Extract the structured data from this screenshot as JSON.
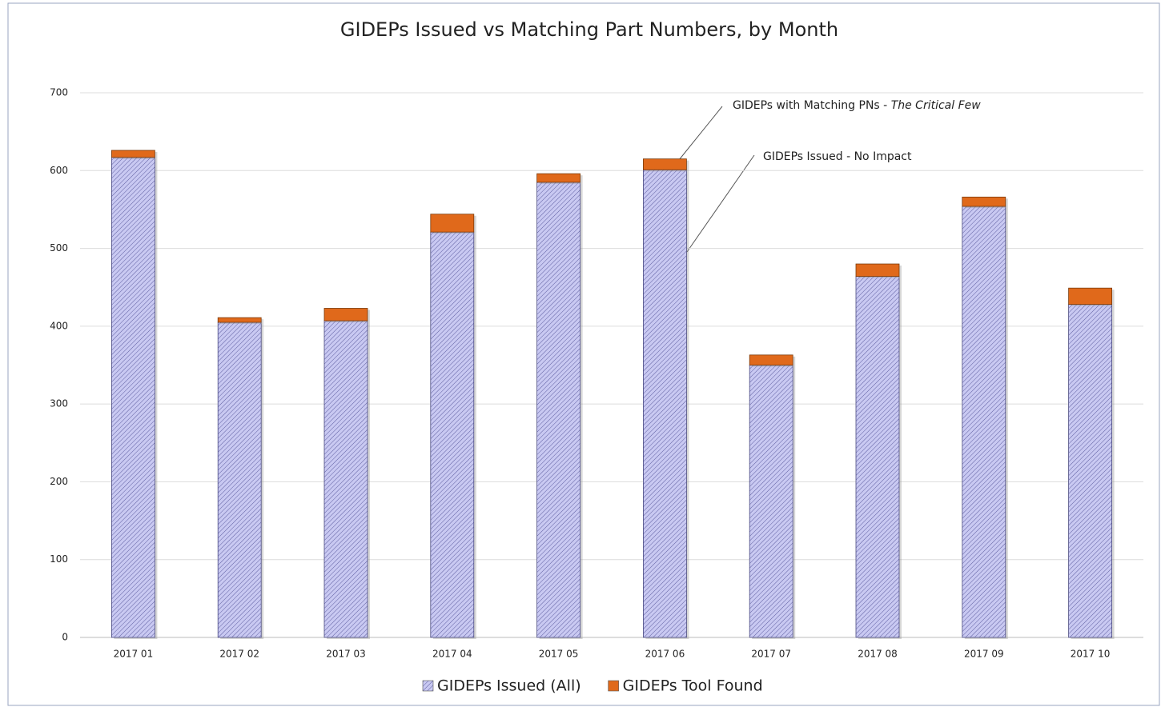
{
  "chart_data": {
    "type": "stacked_bar",
    "title": "GIDEPs Issued vs Matching Part Numbers, by Month",
    "categories": [
      "2017 01",
      "2017 02",
      "2017 03",
      "2017 04",
      "2017 05",
      "2017 06",
      "2017 07",
      "2017 08",
      "2017 09",
      "2017 10"
    ],
    "series": [
      {
        "name": "GIDEPs Issued (All)",
        "color": "#c9c9f2",
        "hatch": "#5e5ea0",
        "values": [
          617,
          405,
          407,
          521,
          585,
          601,
          350,
          464,
          554,
          428
        ]
      },
      {
        "name": "GIDEPs Tool Found",
        "color": "#e0691b",
        "values": [
          9,
          6,
          16,
          23,
          11,
          14,
          13,
          16,
          12,
          21
        ]
      }
    ],
    "ylim": [
      0,
      700
    ],
    "yticks": [
      0,
      100,
      200,
      300,
      400,
      500,
      600,
      700
    ],
    "grid": true,
    "legend": "bottom",
    "annotations": [
      {
        "text": "GIDEPs with Matching PNs - ",
        "italic": "The Critical Few"
      },
      {
        "text": "GIDEPs Issued - No Impact"
      }
    ]
  }
}
